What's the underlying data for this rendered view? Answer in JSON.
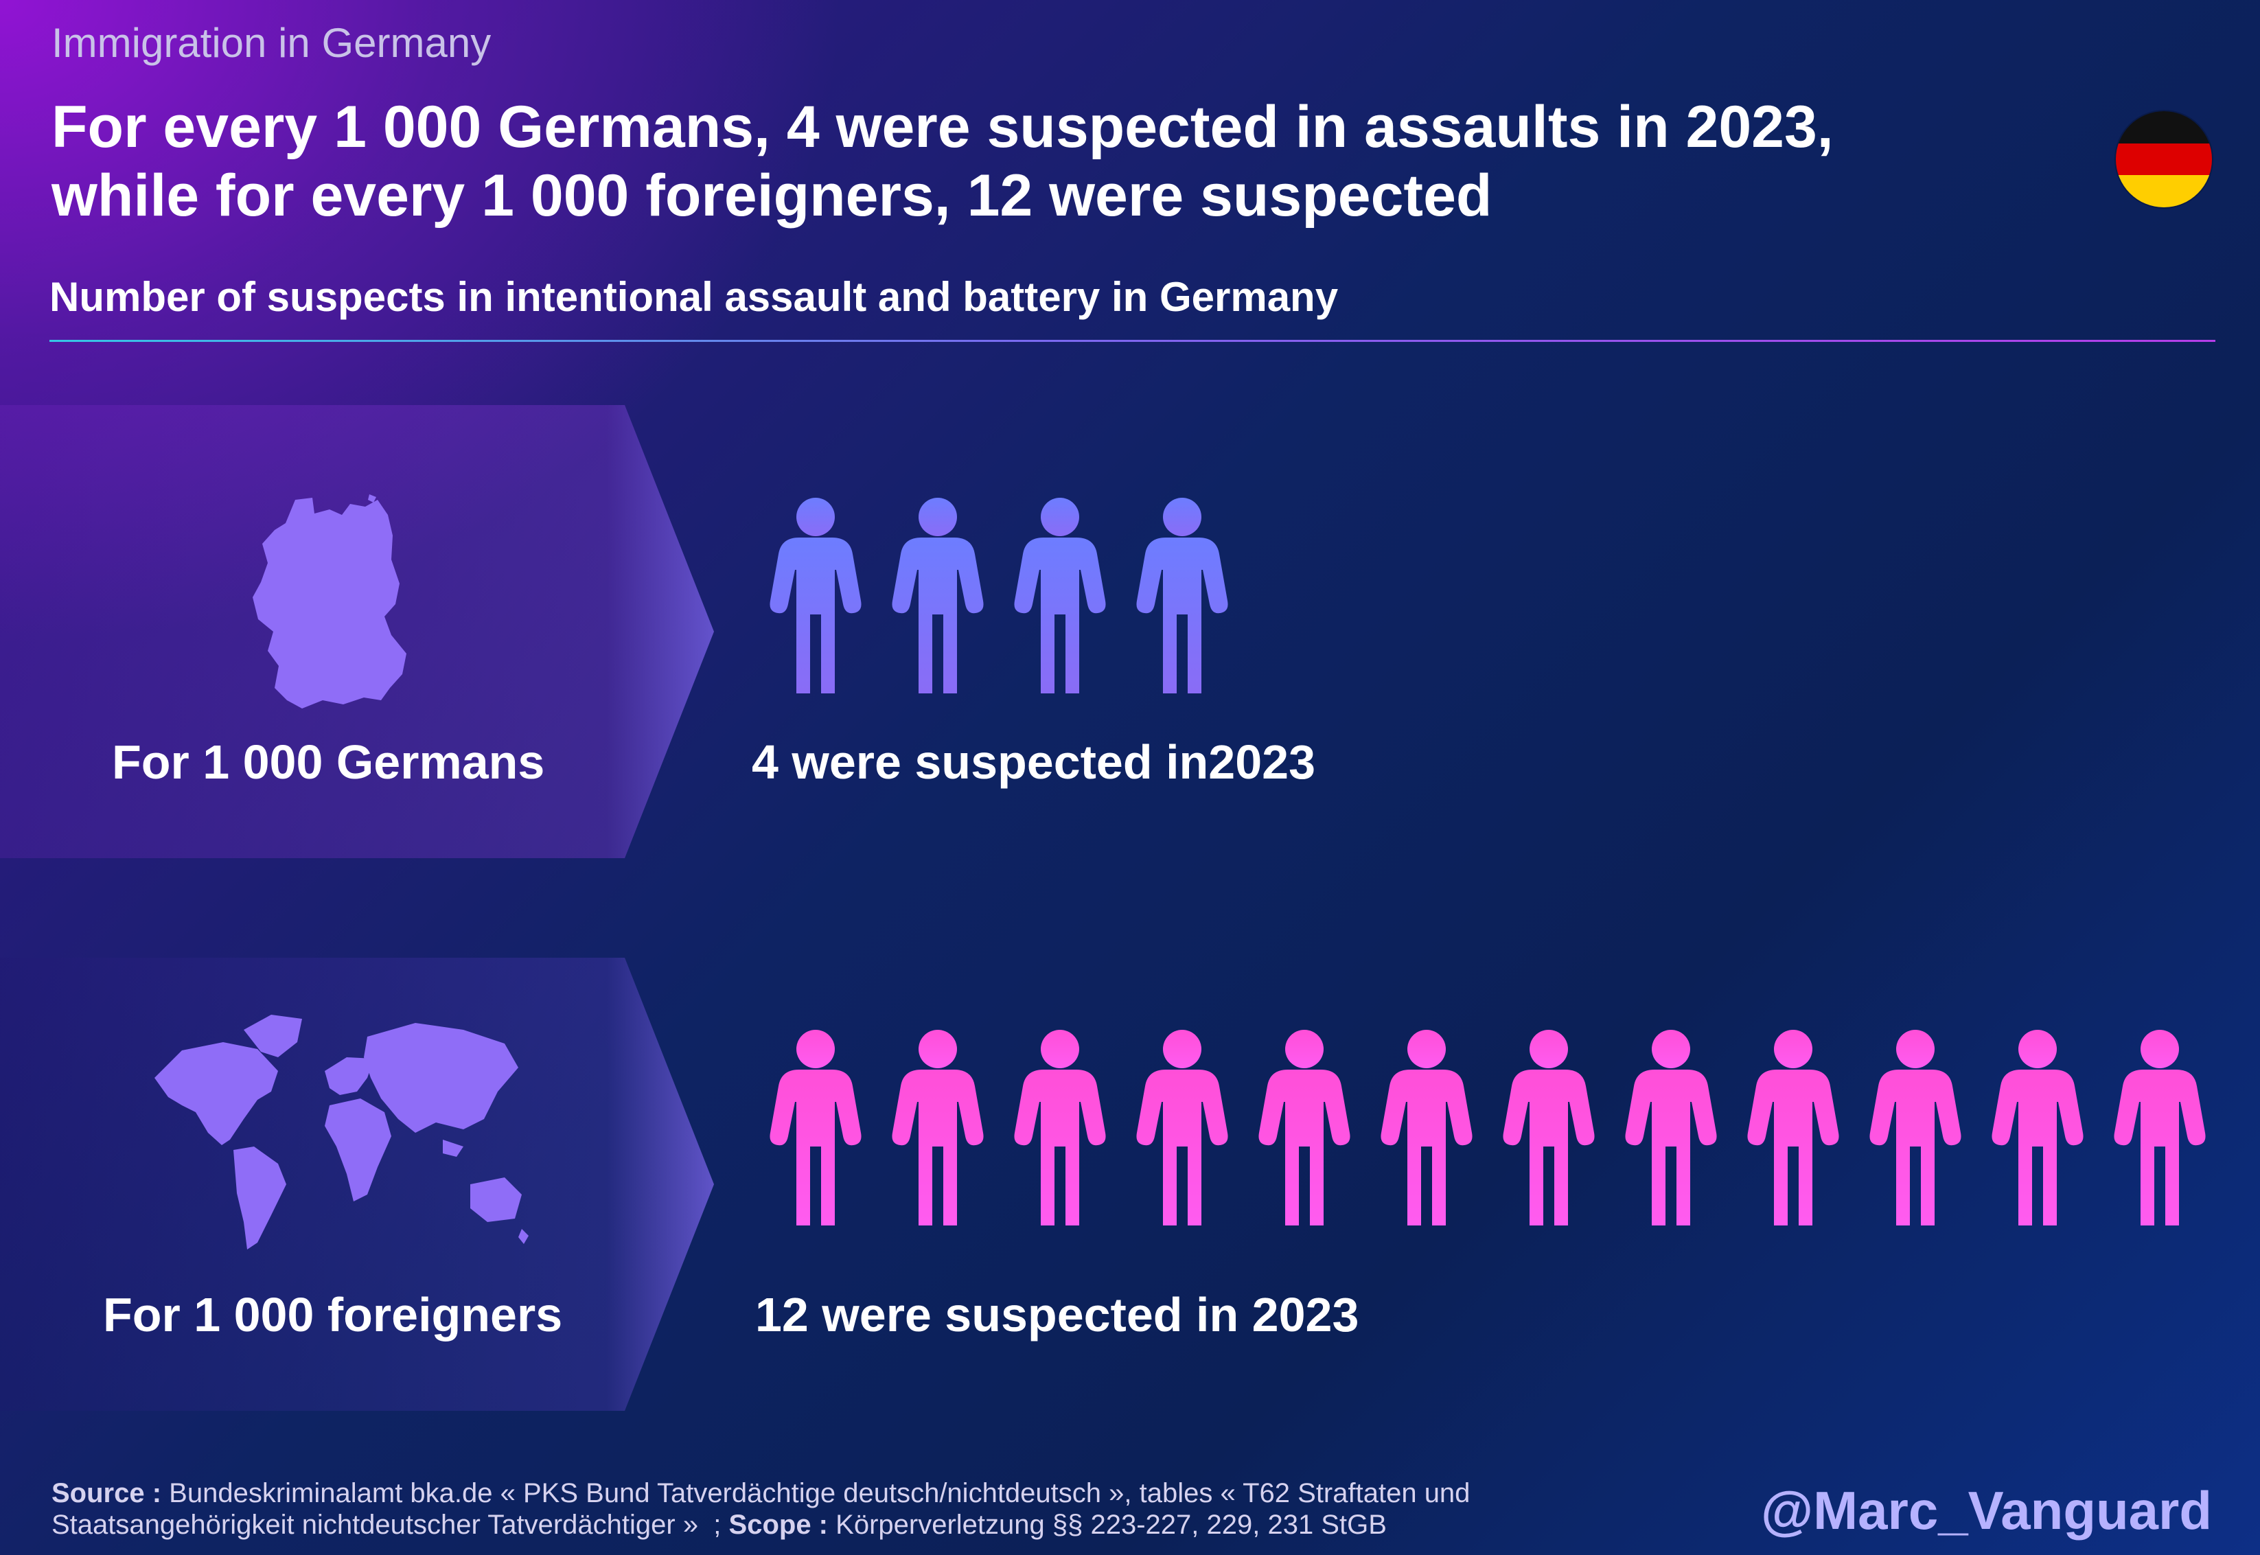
{
  "category": "Immigration in Germany",
  "headline": {
    "line1": "For every 1 000 Germans, 4 were suspected in assaults in 2023,",
    "line2": "while for every 1 000 foreigners, 12 were suspected"
  },
  "subtitle": "Number of suspects in intentional assault and battery in Germany",
  "flag": {
    "icon": "germany-flag-icon",
    "colors": [
      "#111111",
      "#dd0000",
      "#ffce00"
    ]
  },
  "chart_data": {
    "type": "pictogram",
    "title": "Number of suspects in intentional assault and battery in Germany",
    "unit": "suspects per 1 000 people",
    "categories": [
      "For 1 000 Germans",
      "For 1 000 foreigners"
    ],
    "values": [
      4,
      12
    ],
    "year": 2023,
    "colors": [
      "#6d7dff",
      "#ff4fd8"
    ],
    "icons": [
      "germany-map-icon",
      "world-map-icon"
    ]
  },
  "rows": [
    {
      "group_label": "For 1 000 Germans",
      "result_label": "4 were suspected in2023"
    },
    {
      "group_label": "For 1 000 foreigners",
      "result_label": "12 were suspected in 2023"
    }
  ],
  "footer": {
    "source_label": "Source :",
    "source_text": "Bundeskriminalamt bka.de « PKS Bund Tatverdächtige deutsch/nichtdeutsch », tables « T62 Straftaten und Staatsangehörigkeit nichtdeutscher Tatverdächtiger »",
    "scope_label": "Scope :",
    "scope_text": "Körperverletzung §§ 223-227, 229, 231 StGB",
    "handle": "@Marc_Vanguard"
  }
}
